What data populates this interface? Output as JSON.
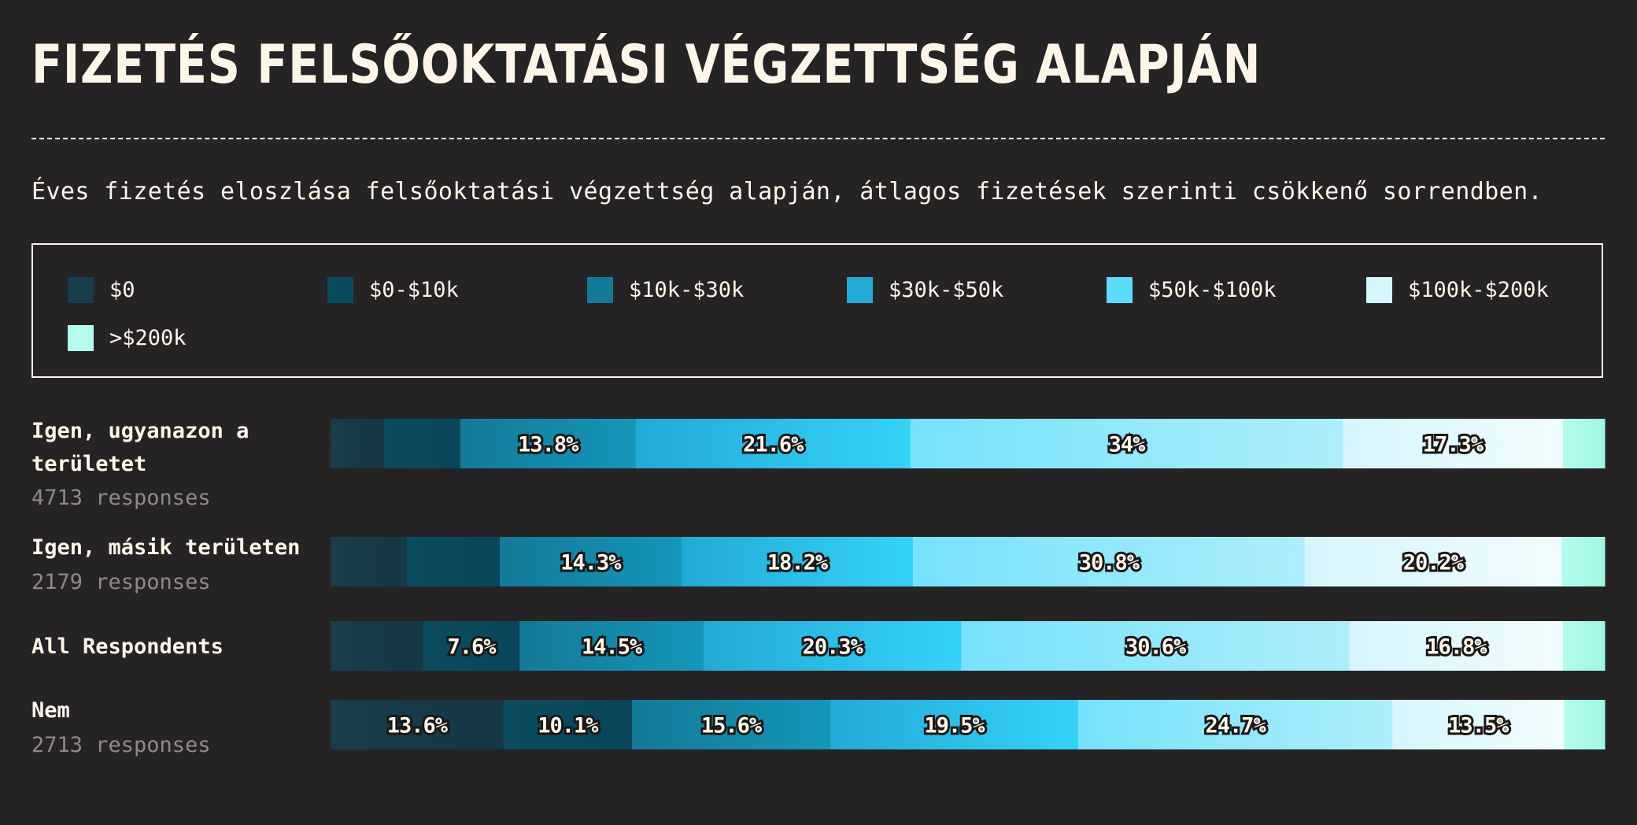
{
  "title": "FIZETÉS FELSŐOKTATÁSI VÉGZETTSÉG ALAPJÁN",
  "subtitle": "Éves fizetés eloszlása felsőoktatási végzettség alapján, átlagos fizetések szerinti csökkenő sorrendben.",
  "legend": [
    {
      "label": "$0",
      "color": "#183d4b"
    },
    {
      "label": "$0-$10k",
      "color": "#0b4b5f"
    },
    {
      "label": "$10k-$30k",
      "color": "#137a97"
    },
    {
      "label": "$30k-$50k",
      "color": "#22aad5"
    },
    {
      "label": "$50k-$100k",
      "color": "#5cdcfb"
    },
    {
      "label": "$100k-$200k",
      "color": "#d6f6fd"
    },
    {
      "label": ">$200k",
      "color": "#b4fbf0"
    }
  ],
  "rows": [
    {
      "label": "Igen, ugyanazon a területet",
      "count": "4713 responses"
    },
    {
      "label": "Igen, másik területen",
      "count": "2179 responses"
    },
    {
      "label": "All Respondents",
      "count": ""
    },
    {
      "label": "Nem",
      "count": "2713 responses"
    }
  ],
  "chart_data": {
    "type": "bar",
    "stacked": true,
    "orientation": "horizontal",
    "normalized": true,
    "categories": [
      "Igen, ugyanazon a területet",
      "Igen, másik területen",
      "All Respondents",
      "Nem"
    ],
    "series": [
      {
        "name": "$0",
        "values": [
          4.2,
          6.0,
          7.3,
          13.6
        ]
      },
      {
        "name": "$0-$10k",
        "values": [
          6.0,
          7.3,
          7.6,
          10.1
        ]
      },
      {
        "name": "$10k-$30k",
        "values": [
          13.8,
          14.3,
          14.5,
          15.6
        ]
      },
      {
        "name": "$30k-$50k",
        "values": [
          21.6,
          18.2,
          20.3,
          19.5
        ]
      },
      {
        "name": "$50k-$100k",
        "values": [
          34,
          30.8,
          30.6,
          24.7
        ]
      },
      {
        "name": "$100k-$200k",
        "values": [
          17.3,
          20.2,
          16.8,
          13.5
        ]
      },
      {
        "name": ">$200k",
        "values": [
          3.3,
          3.4,
          3.3,
          3.2
        ]
      }
    ],
    "data_labels": [
      [
        "",
        "",
        "13.8%",
        "21.6%",
        "34%",
        "17.3%",
        ""
      ],
      [
        "",
        "",
        "14.3%",
        "18.2%",
        "30.8%",
        "20.2%",
        ""
      ],
      [
        "",
        "7.6%",
        "14.5%",
        "20.3%",
        "30.6%",
        "16.8%",
        ""
      ],
      [
        "13.6%",
        "10.1%",
        "15.6%",
        "19.5%",
        "24.7%",
        "13.5%",
        ""
      ]
    ],
    "gradients": [
      [
        "#183d4b",
        "#163744"
      ],
      [
        "#0c4c60",
        "#0a455a"
      ],
      [
        "#137a97",
        "#1596ba"
      ],
      [
        "#22aad5",
        "#35d2f8"
      ],
      [
        "#76e2fb",
        "#adeefb"
      ],
      [
        "#d6f6fd",
        "#f1fcfd"
      ],
      [
        "#b4fbf0",
        "#9ef7e3"
      ]
    ]
  }
}
